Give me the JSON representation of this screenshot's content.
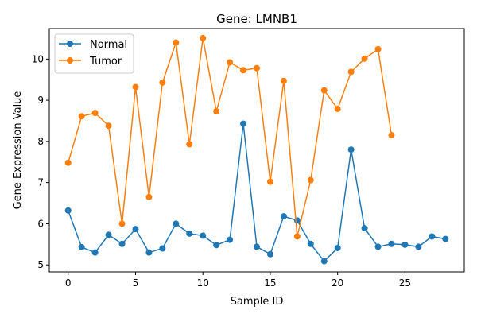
{
  "chart_data": {
    "type": "line",
    "title": "Gene: LMNB1",
    "xlabel": "Sample ID",
    "ylabel": "Gene Expression Value",
    "xlim": [
      -1.4,
      29.4
    ],
    "ylim": [
      4.83,
      10.74
    ],
    "xticks": [
      0,
      5,
      10,
      15,
      20,
      25
    ],
    "yticks": [
      5,
      6,
      7,
      8,
      9,
      10
    ],
    "grid": false,
    "legend": "top-left",
    "series": [
      {
        "name": "Normal",
        "color": "#1f77b4",
        "x": [
          0,
          1,
          2,
          3,
          4,
          5,
          6,
          7,
          8,
          9,
          10,
          11,
          12,
          13,
          14,
          15,
          16,
          17,
          18,
          19,
          20,
          21,
          22,
          23,
          24,
          25,
          26,
          27,
          28
        ],
        "values": [
          6.32,
          5.43,
          5.3,
          5.73,
          5.51,
          5.87,
          5.3,
          5.4,
          6.0,
          5.76,
          5.71,
          5.48,
          5.61,
          8.43,
          5.44,
          5.26,
          6.18,
          6.08,
          5.51,
          5.09,
          5.41,
          7.8,
          5.89,
          5.44,
          5.51,
          5.49,
          5.44,
          5.69,
          5.63
        ]
      },
      {
        "name": "Tumor",
        "color": "#ff7f0e",
        "x": [
          0,
          1,
          2,
          3,
          4,
          5,
          6,
          7,
          8,
          9,
          10,
          11,
          12,
          13,
          14,
          15,
          16,
          17,
          18,
          19,
          20,
          21,
          22,
          23,
          24
        ],
        "values": [
          7.48,
          8.61,
          8.69,
          8.38,
          6.0,
          9.32,
          6.65,
          9.43,
          10.4,
          7.93,
          10.51,
          8.73,
          9.92,
          9.73,
          9.78,
          7.02,
          9.47,
          5.69,
          7.06,
          9.24,
          8.79,
          9.69,
          10.01,
          10.24,
          8.15
        ]
      }
    ]
  }
}
